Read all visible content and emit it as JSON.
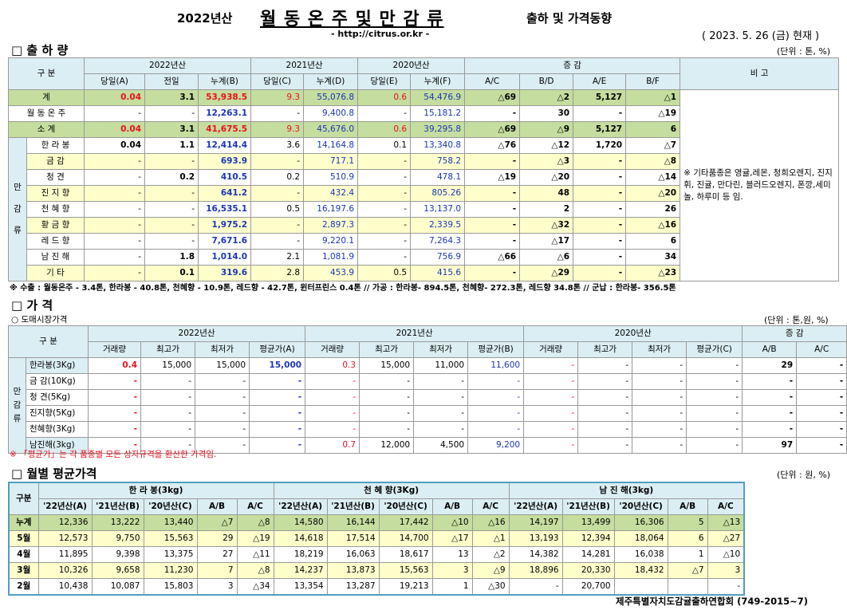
{
  "header": {
    "year": "2022년산",
    "title": "월 동 온 주 및 만 감 류",
    "subtitle": "출하 및 가격동향",
    "url": "- http://citrus.or.kr -",
    "date": "( 2023.  5.  26 (금) 현재 )"
  },
  "shipment": {
    "section_title": "□ 출 하 량",
    "unit": "(단위 : 톤, %)",
    "col_gubun": "구    분",
    "groups": [
      "2022년산",
      "2021년산",
      "2020년산",
      "증     감",
      "비 고"
    ],
    "subcols": [
      "당일(A)",
      "전일",
      "누계(B)",
      "당일(C)",
      "누계(D)",
      "당일(E)",
      "누계(F)",
      "A/C",
      "B/D",
      "A/E",
      "B/F"
    ],
    "side_label": [
      "만",
      "감",
      "류"
    ],
    "remark": "※ 기타품종은 영귤,레몬, 청희오렌지, 진지휘, 진귤, 만다린, 블러드오렌지, 폰깡,세미놀, 하루미 등 임.",
    "rows": [
      {
        "label": "계",
        "cells": [
          "0.04",
          "3.1",
          "53,938.5",
          "9.3",
          "55,076.8",
          "0.6",
          "54,476.9",
          "△69",
          "△2",
          "5,127",
          "△1"
        ]
      },
      {
        "label": "월 동 온 주",
        "cells": [
          "-",
          "-",
          "12,263.1",
          "-",
          "9,400.8",
          "-",
          "15,181.2",
          "-",
          "30",
          "-",
          "△19"
        ]
      },
      {
        "label": "소    계",
        "cells": [
          "0.04",
          "3.1",
          "41,675.5",
          "9.3",
          "45,676.0",
          "0.6",
          "39,295.8",
          "△69",
          "△9",
          "5,127",
          "6"
        ]
      },
      {
        "label": "한 라 봉",
        "cells": [
          "0.04",
          "1.1",
          "12,414.4",
          "3.6",
          "14,164.8",
          "0.1",
          "13,340.8",
          "△76",
          "△12",
          "1,720",
          "△7"
        ]
      },
      {
        "label": "금    감",
        "cells": [
          "-",
          "-",
          "693.9",
          "-",
          "717.1",
          "-",
          "758.2",
          "-",
          "△3",
          "-",
          "△8"
        ]
      },
      {
        "label": "청    견",
        "cells": [
          "-",
          "0.2",
          "410.5",
          "0.2",
          "510.9",
          "-",
          "478.1",
          "△19",
          "△20",
          "-",
          "△14"
        ]
      },
      {
        "label": "진 지 향",
        "cells": [
          "-",
          "-",
          "641.2",
          "-",
          "432.4",
          "-",
          "805.26",
          "-",
          "48",
          "-",
          "△20"
        ]
      },
      {
        "label": "천 혜 향",
        "cells": [
          "-",
          "-",
          "16,535.1",
          "0.5",
          "16,197.6",
          "-",
          "13,137.0",
          "-",
          "2",
          "-",
          "26"
        ]
      },
      {
        "label": "황 금 향",
        "cells": [
          "-",
          "-",
          "1,975.2",
          "-",
          "2,897.3",
          "-",
          "2,339.5",
          "-",
          "△32",
          "-",
          "△16"
        ]
      },
      {
        "label": "레 드 향",
        "cells": [
          "-",
          "-",
          "7,671.6",
          "-",
          "9,220.1",
          "-",
          "7,264.3",
          "-",
          "△17",
          "-",
          "6"
        ]
      },
      {
        "label": "남 진 해",
        "cells": [
          "-",
          "1.8",
          "1,014.0",
          "2.1",
          "1,081.9",
          "-",
          "756.9",
          "△66",
          "△6",
          "-",
          "34"
        ]
      },
      {
        "label": "기    타",
        "cells": [
          "-",
          "0.1",
          "319.6",
          "2.8",
          "453.9",
          "0.5",
          "415.6",
          "-",
          "△29",
          "-",
          "△23"
        ]
      }
    ],
    "footnote": "※ 수출 : 월동온주 - 3.4톤, 한라봉 - 40.8톤, 천혜향 - 10.9톤, 레드향 - 42.7톤, 윈터프린스 0.4톤 //  가공  :  한라봉- 894.5톤, 천혜향- 272.3톤, 레드향 34.8톤  //  군납 : 한라봉- 356.5톤"
  },
  "price": {
    "section_title": "□ 가    격",
    "subsection": "○ 도매시장가격",
    "unit": "(단위 : 톤,원, %)",
    "col_gubun": "구    분",
    "groups": [
      "2022년산",
      "2021년산",
      "2020년산",
      "증    감"
    ],
    "subcols": [
      "거래량",
      "최고가",
      "최저가",
      "평균가(A)",
      "거래량",
      "최고가",
      "최저가",
      "평균가(B)",
      "거래량",
      "최고가",
      "최저가",
      "평균가(C)",
      "A/B",
      "A/C"
    ],
    "side_label": [
      "만",
      "감",
      "류"
    ],
    "rows": [
      {
        "label": "한라봉(3Kg)",
        "cells": [
          "0.4",
          "15,000",
          "15,000",
          "15,000",
          "0.3",
          "15,000",
          "11,000",
          "11,600",
          "-",
          "-",
          "-",
          "-",
          "29",
          "-"
        ]
      },
      {
        "label": "금 감(10Kg)",
        "cells": [
          "-",
          "-",
          "-",
          "-",
          "-",
          "-",
          "-",
          "-",
          "-",
          "-",
          "-",
          "-",
          "-",
          "-"
        ]
      },
      {
        "label": "청    견(5Kg)",
        "cells": [
          "-",
          "-",
          "-",
          "-",
          "-",
          "-",
          "-",
          "-",
          "-",
          "-",
          "-",
          "-",
          "-",
          "-"
        ]
      },
      {
        "label": "진지향(5Kg)",
        "cells": [
          "-",
          "-",
          "-",
          "-",
          "-",
          "-",
          "-",
          "-",
          "-",
          "-",
          "-",
          "-",
          "-",
          "-"
        ]
      },
      {
        "label": "천혜향(3Kg)",
        "cells": [
          "-",
          "-",
          "-",
          "-",
          "-",
          "-",
          "-",
          "-",
          "-",
          "-",
          "-",
          "-",
          "-",
          "-"
        ]
      },
      {
        "label": "남진해(3kg)",
        "cells": [
          "-",
          "-",
          "-",
          "-",
          "0.7",
          "12,000",
          "4,500",
          "9,200",
          "-",
          "-",
          "-",
          "-",
          "97",
          "-"
        ]
      }
    ],
    "footnote": "※ 「평균가」는 각 품종별 모든 상자규격을 환산한 가격임."
  },
  "monthly": {
    "section_title": "□ 월별 평균가격",
    "unit": "(단위 : 원, %)",
    "col_gubun": "구분",
    "groups": [
      "한 라 봉(3kg)",
      "천 혜 향(3Kg)",
      "남 진 해(3kg)"
    ],
    "subcols": [
      "'22년산(A)",
      "'21년산(B)",
      "'20년산(C)",
      "A/B",
      "A/C"
    ],
    "rows": [
      {
        "label": "누계",
        "cells": [
          "12,336",
          "13,222",
          "13,440",
          "△7",
          "△8",
          "14,580",
          "16,144",
          "17,442",
          "△10",
          "△16",
          "14,197",
          "13,499",
          "16,306",
          "5",
          "△13"
        ]
      },
      {
        "label": "5월",
        "cells": [
          "12,573",
          "9,750",
          "15,563",
          "29",
          "△19",
          "14,618",
          "17,514",
          "14,700",
          "△17",
          "△1",
          "13,193",
          "12,394",
          "18,064",
          "6",
          "△27"
        ]
      },
      {
        "label": "4월",
        "cells": [
          "11,895",
          "9,398",
          "13,375",
          "27",
          "△11",
          "18,219",
          "16,063",
          "18,617",
          "13",
          "△2",
          "14,382",
          "14,281",
          "16,038",
          "1",
          "△10"
        ]
      },
      {
        "label": "3월",
        "cells": [
          "10,326",
          "9,658",
          "11,230",
          "7",
          "△8",
          "14,237",
          "13,873",
          "15,563",
          "3",
          "△9",
          "18,896",
          "20,330",
          "18,432",
          "△7",
          "3"
        ]
      },
      {
        "label": "2월",
        "cells": [
          "10,438",
          "10,087",
          "15,803",
          "3",
          "△34",
          "13,354",
          "13,287",
          "19,213",
          "1",
          "△30",
          "-",
          "20,700",
          "",
          "",
          "-"
        ]
      }
    ]
  },
  "footer": "제주특별자치도감귤출하연합회 (749-2015~7)"
}
